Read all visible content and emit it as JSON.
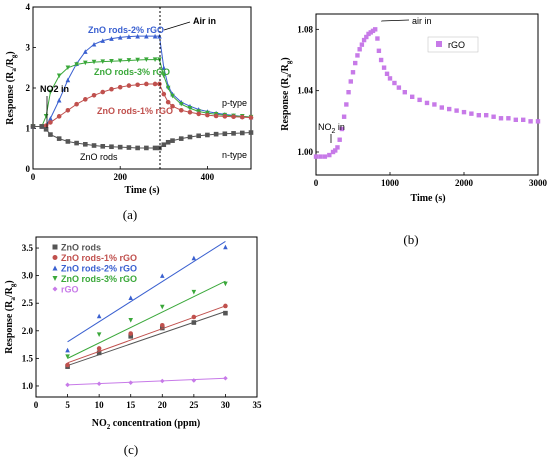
{
  "chart_data": [
    {
      "panel_label": "(a)",
      "type": "line",
      "xlabel": "Time (s)",
      "ylabel": "Response (Ra/Rg)",
      "xlim": [
        0,
        500
      ],
      "ylim": [
        0.0,
        4.0
      ],
      "xticks": [
        "0",
        "200",
        "400"
      ],
      "yticks": [
        "0",
        "1",
        "2",
        "3",
        "4"
      ],
      "annotations": [
        "NO2 in",
        "Air in",
        "p-type",
        "n-type"
      ],
      "vline_x": 290,
      "series": [
        {
          "name": "ZnO rods-2% rGO",
          "color": "#3a60d0",
          "marker": "triangle",
          "x": [
            0,
            20,
            30,
            40,
            60,
            80,
            100,
            120,
            140,
            160,
            180,
            200,
            220,
            240,
            260,
            280,
            290,
            300,
            310,
            320,
            340,
            360,
            380,
            400,
            420,
            440,
            460,
            480,
            500
          ],
          "y": [
            1.05,
            1.05,
            1.07,
            1.25,
            1.7,
            2.2,
            2.6,
            2.9,
            3.08,
            3.17,
            3.22,
            3.25,
            3.27,
            3.28,
            3.28,
            3.28,
            3.28,
            2.5,
            2.05,
            1.85,
            1.65,
            1.55,
            1.47,
            1.42,
            1.38,
            1.35,
            1.32,
            1.3,
            1.28
          ]
        },
        {
          "name": "ZnO rods-3% rGO",
          "color": "#3aa83a",
          "marker": "triangle-down",
          "x": [
            0,
            20,
            30,
            40,
            60,
            80,
            100,
            120,
            140,
            160,
            180,
            200,
            220,
            240,
            260,
            280,
            290,
            300,
            310,
            320,
            340,
            360,
            380,
            400,
            420,
            440,
            460,
            480,
            500
          ],
          "y": [
            1.05,
            1.05,
            1.3,
            1.9,
            2.3,
            2.5,
            2.58,
            2.62,
            2.64,
            2.65,
            2.66,
            2.67,
            2.68,
            2.69,
            2.7,
            2.7,
            2.7,
            2.3,
            2.0,
            1.8,
            1.6,
            1.5,
            1.42,
            1.38,
            1.35,
            1.33,
            1.31,
            1.3,
            1.28
          ]
        },
        {
          "name": "ZnO rods-1% rGO",
          "color": "#c0504d",
          "marker": "circle",
          "x": [
            0,
            20,
            30,
            40,
            60,
            80,
            100,
            120,
            140,
            160,
            180,
            200,
            220,
            240,
            260,
            280,
            290,
            300,
            310,
            320,
            340,
            360,
            380,
            400,
            420,
            440,
            460,
            480,
            500
          ],
          "y": [
            1.05,
            1.05,
            1.07,
            1.15,
            1.3,
            1.45,
            1.6,
            1.72,
            1.82,
            1.9,
            1.97,
            2.02,
            2.06,
            2.08,
            2.1,
            2.1,
            2.1,
            1.85,
            1.65,
            1.55,
            1.45,
            1.4,
            1.36,
            1.33,
            1.31,
            1.3,
            1.29,
            1.28,
            1.27
          ]
        },
        {
          "name": "ZnO rods",
          "color": "#555555",
          "marker": "square",
          "x": [
            0,
            20,
            30,
            40,
            60,
            80,
            100,
            120,
            140,
            160,
            180,
            200,
            220,
            240,
            260,
            280,
            290,
            300,
            310,
            320,
            340,
            360,
            380,
            400,
            420,
            440,
            460,
            480,
            500
          ],
          "y": [
            1.05,
            1.05,
            0.98,
            0.85,
            0.75,
            0.68,
            0.64,
            0.61,
            0.58,
            0.56,
            0.55,
            0.54,
            0.53,
            0.52,
            0.52,
            0.52,
            0.52,
            0.6,
            0.66,
            0.7,
            0.75,
            0.79,
            0.82,
            0.84,
            0.86,
            0.87,
            0.88,
            0.89,
            0.9
          ]
        }
      ]
    },
    {
      "panel_label": "(b)",
      "type": "scatter",
      "xlabel": "Time (s)",
      "ylabel": "Response (Ra/Rg)",
      "xlim": [
        0,
        3000
      ],
      "ylim": [
        0.985,
        1.09
      ],
      "xticks": [
        "0",
        "1000",
        "2000",
        "3000"
      ],
      "yticks": [
        "1.00",
        "1.04",
        "1.08"
      ],
      "annotations": [
        "air in",
        "NO2 in"
      ],
      "series": [
        {
          "name": "rGO",
          "color": "#c77ae8",
          "marker": "square",
          "x": [
            0,
            60,
            120,
            180,
            230,
            260,
            290,
            320,
            350,
            380,
            410,
            440,
            470,
            500,
            530,
            560,
            590,
            620,
            650,
            680,
            710,
            740,
            770,
            800,
            830,
            850,
            880,
            920,
            960,
            1000,
            1060,
            1120,
            1200,
            1300,
            1400,
            1500,
            1600,
            1700,
            1800,
            1900,
            2000,
            2100,
            2200,
            2300,
            2400,
            2500,
            2600,
            2700,
            2800,
            2900,
            3000
          ],
          "y": [
            0.997,
            0.997,
            0.997,
            0.998,
            1.0,
            1.001,
            1.003,
            1.008,
            1.015,
            1.023,
            1.031,
            1.039,
            1.046,
            1.052,
            1.058,
            1.063,
            1.067,
            1.07,
            1.073,
            1.075,
            1.077,
            1.078,
            1.079,
            1.08,
            1.074,
            1.066,
            1.06,
            1.055,
            1.051,
            1.048,
            1.045,
            1.042,
            1.039,
            1.036,
            1.034,
            1.032,
            1.031,
            1.029,
            1.028,
            1.027,
            1.026,
            1.025,
            1.024,
            1.024,
            1.023,
            1.022,
            1.022,
            1.021,
            1.021,
            1.02,
            1.02
          ]
        }
      ],
      "legend": {
        "position": "top-right",
        "labels": [
          "rGO"
        ]
      }
    },
    {
      "panel_label": "(c)",
      "type": "scatter",
      "xlabel": "NO2 concentration (ppm)",
      "ylabel": "Response (Ra/Rg)",
      "xlim": [
        0,
        35
      ],
      "ylim": [
        0.8,
        3.7
      ],
      "xticks": [
        "0",
        "5",
        "10",
        "15",
        "20",
        "25",
        "30",
        "35"
      ],
      "yticks": [
        "1.0",
        "1.5",
        "2.0",
        "2.5",
        "3.0",
        "3.5"
      ],
      "legend": {
        "position": "top-left"
      },
      "series": [
        {
          "name": "ZnO rods",
          "color": "#555555",
          "marker": "square",
          "x": [
            5,
            10,
            15,
            20,
            25,
            30
          ],
          "y": [
            1.35,
            1.6,
            1.9,
            2.05,
            2.15,
            2.32
          ],
          "fit": [
            1.37,
            2.35
          ]
        },
        {
          "name": "ZnO rods-1% rGO",
          "color": "#c0504d",
          "marker": "circle",
          "x": [
            5,
            10,
            15,
            20,
            25,
            30
          ],
          "y": [
            1.38,
            1.68,
            1.95,
            2.1,
            2.25,
            2.45
          ],
          "fit": [
            1.42,
            2.45
          ]
        },
        {
          "name": "ZnO rods-2% rGO",
          "color": "#3a60d0",
          "marker": "triangle",
          "x": [
            5,
            10,
            15,
            20,
            25,
            30
          ],
          "y": [
            1.65,
            2.27,
            2.6,
            3.0,
            3.32,
            3.52
          ],
          "fit": [
            1.8,
            3.62
          ]
        },
        {
          "name": "ZnO rods-3% rGO",
          "color": "#3aa83a",
          "marker": "triangle-down",
          "x": [
            5,
            10,
            15,
            20,
            25,
            30
          ],
          "y": [
            1.53,
            1.93,
            2.19,
            2.43,
            2.7,
            2.85
          ],
          "fit": [
            1.5,
            2.9
          ]
        },
        {
          "name": "rGO",
          "color": "#c77ae8",
          "marker": "diamond",
          "x": [
            5,
            10,
            15,
            20,
            25,
            30
          ],
          "y": [
            1.02,
            1.04,
            1.06,
            1.09,
            1.1,
            1.14
          ],
          "fit": [
            1.02,
            1.14
          ]
        }
      ]
    }
  ]
}
